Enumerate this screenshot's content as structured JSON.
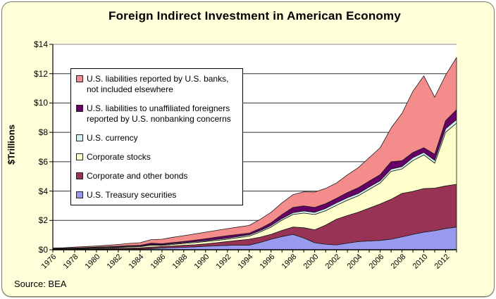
{
  "title": "Foreign Indirect Investment in American Economy",
  "source": "Source: BEA",
  "y_axis": {
    "title": "$Trillions",
    "tick_labels": [
      "$0",
      "$2",
      "$4",
      "$6",
      "$8",
      "$10",
      "$12",
      "$14"
    ]
  },
  "x_axis": {
    "tick_labels": [
      "1976",
      "1978",
      "1980",
      "1982",
      "1984",
      "1986",
      "1988",
      "1990",
      "1992",
      "1994",
      "1996",
      "1998",
      "2000",
      "2002",
      "2004",
      "2006",
      "2008",
      "2010",
      "2012"
    ]
  },
  "colors": {
    "background": "#FFFFD9",
    "plot_bg": "#FFFFFF",
    "gridline": "#303030",
    "top_border": "#8a8a8a",
    "axis": "#000000",
    "treasury": "#9999EE",
    "bonds": "#993355",
    "stocks": "#FFFFCC",
    "currency": "#D6EEF2",
    "nonbank": "#660066",
    "banks": "#F48C8C"
  },
  "legend": {
    "items": [
      {
        "label": "U.S. liabilities reported by U.S. banks, not included elsewhere",
        "color": "#F48C8C",
        "series_id": "banks"
      },
      {
        "label": "U.S. liabilities to unaffiliated foreigners reported by U.S. nonbanking concerns",
        "color": "#660066",
        "series_id": "nonbank"
      },
      {
        "label": "U.S. currency",
        "color": "#D6EEF2",
        "series_id": "currency"
      },
      {
        "label": "Corporate stocks",
        "color": "#FFFFCC",
        "series_id": "stocks"
      },
      {
        "label": "Corporate and other bonds",
        "color": "#993355",
        "series_id": "bonds"
      },
      {
        "label": "U.S. Treasury securities",
        "color": "#9999EE",
        "series_id": "treasury"
      }
    ]
  },
  "chart_data": {
    "type": "area",
    "stacked": true,
    "title": "Foreign Indirect Investment in American Economy",
    "xlabel": "",
    "ylabel": "$Trillions",
    "ylim": [
      0,
      14
    ],
    "grid": true,
    "legend_position": "upper-left-inside",
    "units": "trillions of US dollars",
    "x": [
      1976,
      1977,
      1978,
      1979,
      1980,
      1981,
      1982,
      1983,
      1984,
      1985,
      1986,
      1987,
      1988,
      1989,
      1990,
      1991,
      1992,
      1993,
      1994,
      1995,
      1996,
      1997,
      1998,
      1999,
      2000,
      2001,
      2002,
      2003,
      2004,
      2005,
      2006,
      2007,
      2008,
      2009,
      2010,
      2011,
      2012,
      2013
    ],
    "series": [
      {
        "id": "treasury",
        "name": "U.S. Treasury securities",
        "color": "#9999EE",
        "values": [
          0.01,
          0.02,
          0.02,
          0.03,
          0.03,
          0.04,
          0.04,
          0.05,
          0.05,
          0.08,
          0.12,
          0.15,
          0.17,
          0.2,
          0.24,
          0.27,
          0.3,
          0.31,
          0.32,
          0.5,
          0.72,
          0.9,
          1.05,
          0.8,
          0.48,
          0.38,
          0.33,
          0.45,
          0.56,
          0.6,
          0.64,
          0.72,
          0.88,
          1.05,
          1.2,
          1.3,
          1.45,
          1.55
        ]
      },
      {
        "id": "bonds",
        "name": "Corporate and other bonds",
        "color": "#993355",
        "values": [
          0.02,
          0.02,
          0.03,
          0.03,
          0.04,
          0.05,
          0.06,
          0.07,
          0.08,
          0.1,
          0.1,
          0.11,
          0.13,
          0.14,
          0.16,
          0.21,
          0.26,
          0.33,
          0.4,
          0.36,
          0.33,
          0.42,
          0.5,
          0.7,
          0.88,
          1.3,
          1.75,
          1.88,
          2.0,
          2.24,
          2.48,
          2.72,
          2.96,
          2.93,
          2.97,
          2.9,
          2.9,
          2.91
        ]
      },
      {
        "id": "stocks",
        "name": "Corporate stocks",
        "color": "#FFFFCC",
        "values": [
          0.02,
          0.02,
          0.03,
          0.04,
          0.05,
          0.05,
          0.06,
          0.08,
          0.08,
          0.13,
          0.08,
          0.1,
          0.13,
          0.15,
          0.16,
          0.16,
          0.16,
          0.19,
          0.21,
          0.35,
          0.5,
          0.7,
          0.85,
          1.0,
          1.04,
          0.98,
          0.95,
          1.05,
          1.12,
          1.28,
          1.43,
          1.9,
          1.67,
          2.1,
          2.3,
          1.7,
          3.65,
          4.17
        ]
      },
      {
        "id": "currency",
        "name": "U.S. currency",
        "color": "#D6EEF2",
        "values": [
          0.01,
          0.01,
          0.01,
          0.02,
          0.02,
          0.02,
          0.03,
          0.03,
          0.03,
          0.04,
          0.04,
          0.05,
          0.05,
          0.06,
          0.06,
          0.07,
          0.07,
          0.08,
          0.09,
          0.09,
          0.1,
          0.11,
          0.12,
          0.14,
          0.15,
          0.16,
          0.17,
          0.17,
          0.16,
          0.16,
          0.16,
          0.16,
          0.16,
          0.2,
          0.16,
          0.2,
          0.25,
          0.24
        ]
      },
      {
        "id": "nonbank",
        "name": "U.S. liabilities to unaffiliated foreigners reported by U.S. nonbanking concerns",
        "color": "#660066",
        "values": [
          0.03,
          0.03,
          0.03,
          0.03,
          0.04,
          0.04,
          0.05,
          0.05,
          0.06,
          0.1,
          0.07,
          0.08,
          0.08,
          0.1,
          0.13,
          0.15,
          0.17,
          0.14,
          0.11,
          0.15,
          0.19,
          0.27,
          0.36,
          0.35,
          0.33,
          0.32,
          0.31,
          0.35,
          0.39,
          0.4,
          0.41,
          0.5,
          0.4,
          0.35,
          0.32,
          0.4,
          0.55,
          0.67
        ]
      },
      {
        "id": "banks",
        "name": "U.S. liabilities reported by U.S. banks, not included elsewhere",
        "color": "#F48C8C",
        "values": [
          0.03,
          0.04,
          0.06,
          0.07,
          0.08,
          0.1,
          0.12,
          0.15,
          0.18,
          0.24,
          0.31,
          0.36,
          0.4,
          0.43,
          0.45,
          0.46,
          0.48,
          0.5,
          0.53,
          0.62,
          0.71,
          0.8,
          0.87,
          0.96,
          1.05,
          1.04,
          1.04,
          1.2,
          1.37,
          1.6,
          1.83,
          2.3,
          3.23,
          4.17,
          4.9,
          3.9,
          3.1,
          3.56
        ]
      }
    ]
  }
}
